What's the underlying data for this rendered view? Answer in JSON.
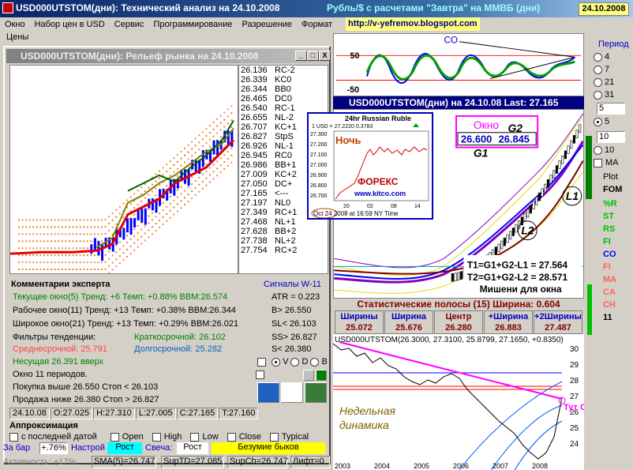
{
  "titlebar": {
    "title": "USD000UTSTOM(дни): Технический анализ на 24.10.2008",
    "subtitle": "Рубль/$ с расчетами \"Завтра\" на ММВБ (дни)",
    "date": "24.10.2008"
  },
  "menu": [
    "Окно",
    "Набор цен в USD",
    "Сервис",
    "Программирование",
    "Разрешение",
    "Формат"
  ],
  "url": "http://v-yefremov.blogspot.com",
  "prices_label": "Цены",
  "relief": {
    "title": "USD000UTSTOM(дни): Рельеф рынка на 24.10.2008",
    "min": "_",
    "max": "□",
    "close": "X",
    "table": [
      [
        "26.136",
        "RC-2"
      ],
      [
        "26.339",
        "KC0"
      ],
      [
        "26.344",
        "BB0"
      ],
      [
        "26.465",
        "DC0"
      ],
      [
        "26.540",
        "RC-1"
      ],
      [
        "26.655",
        "NL-2"
      ],
      [
        "26.707",
        "KC+1"
      ],
      [
        "26.827",
        "StpS"
      ],
      [
        "26.926",
        "NL-1"
      ],
      [
        "26.945",
        "RC0"
      ],
      [
        "26.986",
        "BB+1"
      ],
      [
        "27.009",
        "KC+2"
      ],
      [
        "27.050",
        "DC+"
      ],
      [
        "27.165",
        "<---"
      ],
      [
        "27.197",
        "NL0"
      ],
      [
        "27.349",
        "RC+1"
      ],
      [
        "27.468",
        "NL+1"
      ],
      [
        "27.628",
        "BB+2"
      ],
      [
        "27.738",
        "NL+2"
      ],
      [
        "27.754",
        "RC+2"
      ]
    ]
  },
  "expert": {
    "header": "Комментарии эксперта",
    "signals_header": "Сигналы W-11",
    "lines": [
      "Текущее окно(5) Тренд: +6 Темп: +0.88% BBM:26.574",
      "Рабочее окно(11) Тренд: +13 Темп: +0.38% BBM:26.344",
      "Широкое окно(21) Тренд: +13 Темп: +0.29% BBM:26.021",
      "Фильтры тенденции:",
      "Среднесрочной: 25.791",
      "Несущая  26.391  вверх",
      "Окно 11 периодов.",
      "Покупка выше 26.550  Стоп < 26.103",
      "Продажа ниже 26.380  Стоп > 26.827"
    ],
    "short_term": "Краткосрочной: 26.102",
    "long_term": "Долгосрочной: 25.282",
    "signals": [
      "ATR = 0.223",
      "B> 26.550",
      "SL< 26.103",
      "SS> 26.827",
      "S< 26.380"
    ],
    "radios": [
      "V",
      "D",
      "B"
    ]
  },
  "status": [
    "24.10.08",
    "O:27.025",
    "H:27.310",
    "L:27.005",
    "C:27.165",
    "T:27.160"
  ],
  "approx": {
    "header": "Аппроксимация",
    "options": [
      "с последней датой",
      "Open",
      "High",
      "Low",
      "Close",
      "Typical"
    ]
  },
  "bottom1": {
    "zabar": "За бар",
    "pct": "+.76%",
    "nastroy": "Настрой",
    "rost": "Рост",
    "svecha": "Свеча:",
    "rost2": "Рост",
    "bulls": "Безумие быков"
  },
  "bottom2": {
    "activity": "Активность: +17%",
    "sma": "SMA(5)=26.747",
    "suptd": "SupTD=27.085",
    "supch": "SupCh=26.747",
    "lift": "Лифт=0"
  },
  "osc": {
    "label_top": "50",
    "label_bottom": "-50",
    "tag": "CO"
  },
  "main": {
    "title": "USD000UTSTOM(дни) на 24.10.08   Last: 27.165",
    "window_label": "Окно",
    "g2": "G2",
    "g1": "G1",
    "v1": "26.600",
    "v2": "26.845",
    "l1": "L1",
    "l2": "L2",
    "t1": "T1=G1+G2-L1 = 27.564",
    "t2": "T2=G1+G2-L2 = 28.571",
    "targets": "Мишени для окна"
  },
  "stats": {
    "header": "Статистические полосы (15)  Ширина: 0.604",
    "cells": [
      {
        "l": "Ширины",
        "v": "25.072"
      },
      {
        "l": "Ширина",
        "v": "25.676"
      },
      {
        "l": "Центр",
        "v": "26.280"
      },
      {
        "l": "+Ширина",
        "v": "26.883"
      },
      {
        "l": "+2Ширины",
        "v": "27.487"
      }
    ]
  },
  "kitco": {
    "title": "24hr Russian Ruble",
    "quote": "1 USD = 27.2220  0.3783",
    "night": "Ночь",
    "forex": "ФОРЕКС",
    "site": "www.kitco.com",
    "footer": "Oct 24 2008 at 16:59 NY Time",
    "yticks": [
      "27.300",
      "27.200",
      "27.100",
      "27.000",
      "26.900",
      "26.800",
      "26.700"
    ],
    "xticks": [
      "20",
      "02",
      "08",
      "14"
    ]
  },
  "weekly": {
    "header": "USD000UTSTOM(26.3000, 27.3100, 25.8799, 27.1650, +0.8350)",
    "label1": "Недельная",
    "label2": "динамика",
    "tut": "Тут Окно",
    "yticks": [
      "30",
      "29",
      "28",
      "27",
      "26",
      "25",
      "24"
    ],
    "xticks": [
      "2003",
      "2004",
      "2005",
      "2006",
      "2007",
      "2008"
    ]
  },
  "right": {
    "period": "Период",
    "periods": [
      "4",
      "7",
      "21",
      "31"
    ],
    "p5": "5",
    "p10": "10",
    "input1": "5",
    "input2": "10",
    "ma": "MA",
    "plot": "Plot",
    "fom": "FOM",
    "indicators": [
      {
        "n": "%R",
        "c": "#00c000"
      },
      {
        "n": "ST",
        "c": "#00c000"
      },
      {
        "n": "RS",
        "c": "#00c000"
      },
      {
        "n": "FI",
        "c": "#00c000"
      },
      {
        "n": "CO",
        "c": "#0000ff"
      },
      {
        "n": "FI",
        "c": "#ff6060"
      },
      {
        "n": "MA",
        "c": "#ff6060"
      },
      {
        "n": "CA",
        "c": "#ff6060"
      },
      {
        "n": "CH",
        "c": "#ff6060"
      },
      {
        "n": "11",
        "c": "#000000"
      }
    ]
  }
}
